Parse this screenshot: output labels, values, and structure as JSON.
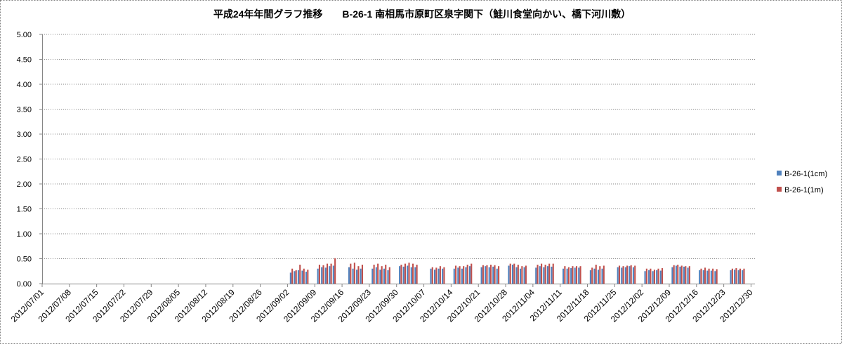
{
  "chart_data": {
    "type": "bar",
    "title": "平成24年年間グラフ推移　　B-26-1 南相馬市原町区泉字関下（鮭川食堂向かい、橋下河川敷）",
    "xlabel": "",
    "ylabel": "",
    "ylim": [
      0,
      5
    ],
    "xlim": [
      "2012/07/01",
      "2012/12/31"
    ],
    "grid": true,
    "legend": "right",
    "y_ticks": [
      "0.00",
      "0.50",
      "1.00",
      "1.50",
      "2.00",
      "2.50",
      "3.00",
      "3.50",
      "4.00",
      "4.50",
      "5.00"
    ],
    "x_ticks": [
      "2012/07/01",
      "2012/07/08",
      "2012/07/15",
      "2012/07/22",
      "2012/07/29",
      "2012/08/05",
      "2012/08/12",
      "2012/08/19",
      "2012/08/26",
      "2012/09/02",
      "2012/09/09",
      "2012/09/16",
      "2012/09/23",
      "2012/09/30",
      "2012/10/07",
      "2012/10/14",
      "2012/10/21",
      "2012/10/28",
      "2012/11/04",
      "2012/11/11",
      "2012/11/18",
      "2012/11/25",
      "2012/12/02",
      "2012/12/09",
      "2012/12/16",
      "2012/12/23",
      "2012/12/30"
    ],
    "x": [
      "2012/09/03",
      "2012/09/04",
      "2012/09/05",
      "2012/09/06",
      "2012/09/07",
      "2012/09/10",
      "2012/09/11",
      "2012/09/12",
      "2012/09/13",
      "2012/09/14",
      "2012/09/18",
      "2012/09/19",
      "2012/09/20",
      "2012/09/21",
      "2012/09/24",
      "2012/09/25",
      "2012/09/26",
      "2012/09/27",
      "2012/09/28",
      "2012/10/01",
      "2012/10/02",
      "2012/10/03",
      "2012/10/04",
      "2012/10/05",
      "2012/10/09",
      "2012/10/10",
      "2012/10/11",
      "2012/10/12",
      "2012/10/15",
      "2012/10/16",
      "2012/10/17",
      "2012/10/18",
      "2012/10/19",
      "2012/10/22",
      "2012/10/23",
      "2012/10/24",
      "2012/10/25",
      "2012/10/26",
      "2012/10/29",
      "2012/10/30",
      "2012/10/31",
      "2012/11/01",
      "2012/11/02",
      "2012/11/05",
      "2012/11/06",
      "2012/11/07",
      "2012/11/08",
      "2012/11/09",
      "2012/11/12",
      "2012/11/13",
      "2012/11/14",
      "2012/11/15",
      "2012/11/16",
      "2012/11/19",
      "2012/11/20",
      "2012/11/21",
      "2012/11/22",
      "2012/11/26",
      "2012/11/27",
      "2012/11/28",
      "2012/11/29",
      "2012/11/30",
      "2012/12/03",
      "2012/12/04",
      "2012/12/05",
      "2012/12/06",
      "2012/12/07",
      "2012/12/10",
      "2012/12/11",
      "2012/12/12",
      "2012/12/13",
      "2012/12/14",
      "2012/12/17",
      "2012/12/18",
      "2012/12/19",
      "2012/12/20",
      "2012/12/21",
      "2012/12/25",
      "2012/12/26",
      "2012/12/27",
      "2012/12/28"
    ],
    "series": [
      {
        "name": "B-26-1(1cm)",
        "color": "#4F81BD",
        "values": [
          0.22,
          0.25,
          0.27,
          0.26,
          0.24,
          0.3,
          0.33,
          0.32,
          0.35,
          0.36,
          0.33,
          0.3,
          0.28,
          0.3,
          0.3,
          0.33,
          0.28,
          0.3,
          0.27,
          0.35,
          0.34,
          0.36,
          0.33,
          0.33,
          0.3,
          0.28,
          0.3,
          0.3,
          0.3,
          0.32,
          0.3,
          0.33,
          0.35,
          0.33,
          0.35,
          0.33,
          0.34,
          0.3,
          0.36,
          0.38,
          0.33,
          0.3,
          0.33,
          0.32,
          0.35,
          0.33,
          0.35,
          0.34,
          0.3,
          0.3,
          0.31,
          0.32,
          0.32,
          0.27,
          0.3,
          0.28,
          0.3,
          0.33,
          0.32,
          0.33,
          0.35,
          0.33,
          0.25,
          0.27,
          0.25,
          0.27,
          0.26,
          0.33,
          0.36,
          0.34,
          0.34,
          0.32,
          0.27,
          0.27,
          0.26,
          0.26,
          0.25,
          0.27,
          0.28,
          0.27,
          0.27
        ]
      },
      {
        "name": "B-26-1(1m)",
        "color": "#C0504D",
        "values": [
          0.3,
          0.27,
          0.38,
          0.3,
          0.28,
          0.38,
          0.37,
          0.4,
          0.4,
          0.51,
          0.4,
          0.42,
          0.35,
          0.38,
          0.38,
          0.4,
          0.35,
          0.38,
          0.33,
          0.38,
          0.4,
          0.42,
          0.4,
          0.38,
          0.33,
          0.32,
          0.35,
          0.33,
          0.36,
          0.35,
          0.35,
          0.38,
          0.4,
          0.37,
          0.37,
          0.38,
          0.37,
          0.35,
          0.4,
          0.4,
          0.38,
          0.35,
          0.36,
          0.38,
          0.4,
          0.38,
          0.4,
          0.4,
          0.35,
          0.33,
          0.35,
          0.35,
          0.35,
          0.32,
          0.38,
          0.35,
          0.36,
          0.36,
          0.35,
          0.36,
          0.37,
          0.36,
          0.3,
          0.3,
          0.28,
          0.3,
          0.31,
          0.37,
          0.38,
          0.36,
          0.35,
          0.35,
          0.3,
          0.32,
          0.3,
          0.3,
          0.29,
          0.3,
          0.31,
          0.3,
          0.3
        ]
      }
    ]
  }
}
